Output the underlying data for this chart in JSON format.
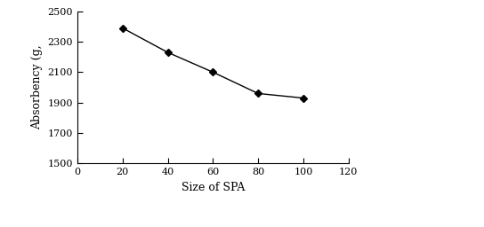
{
  "x": [
    20,
    40,
    60,
    80,
    100
  ],
  "y": [
    2390,
    2230,
    2100,
    1960,
    1930
  ],
  "xlabel": "Size of SPA",
  "ylabel": "Absorbency (g,",
  "xlim": [
    0,
    120
  ],
  "ylim": [
    1500,
    2500
  ],
  "xticks": [
    0,
    20,
    40,
    60,
    80,
    100,
    120
  ],
  "yticks": [
    1500,
    1700,
    1900,
    2100,
    2300,
    2500
  ],
  "line_color": "#000000",
  "marker": "D",
  "marker_size": 4,
  "marker_color": "#000000",
  "line_width": 1.0,
  "background_color": "#ffffff",
  "tick_fontsize": 8,
  "label_fontsize": 9
}
